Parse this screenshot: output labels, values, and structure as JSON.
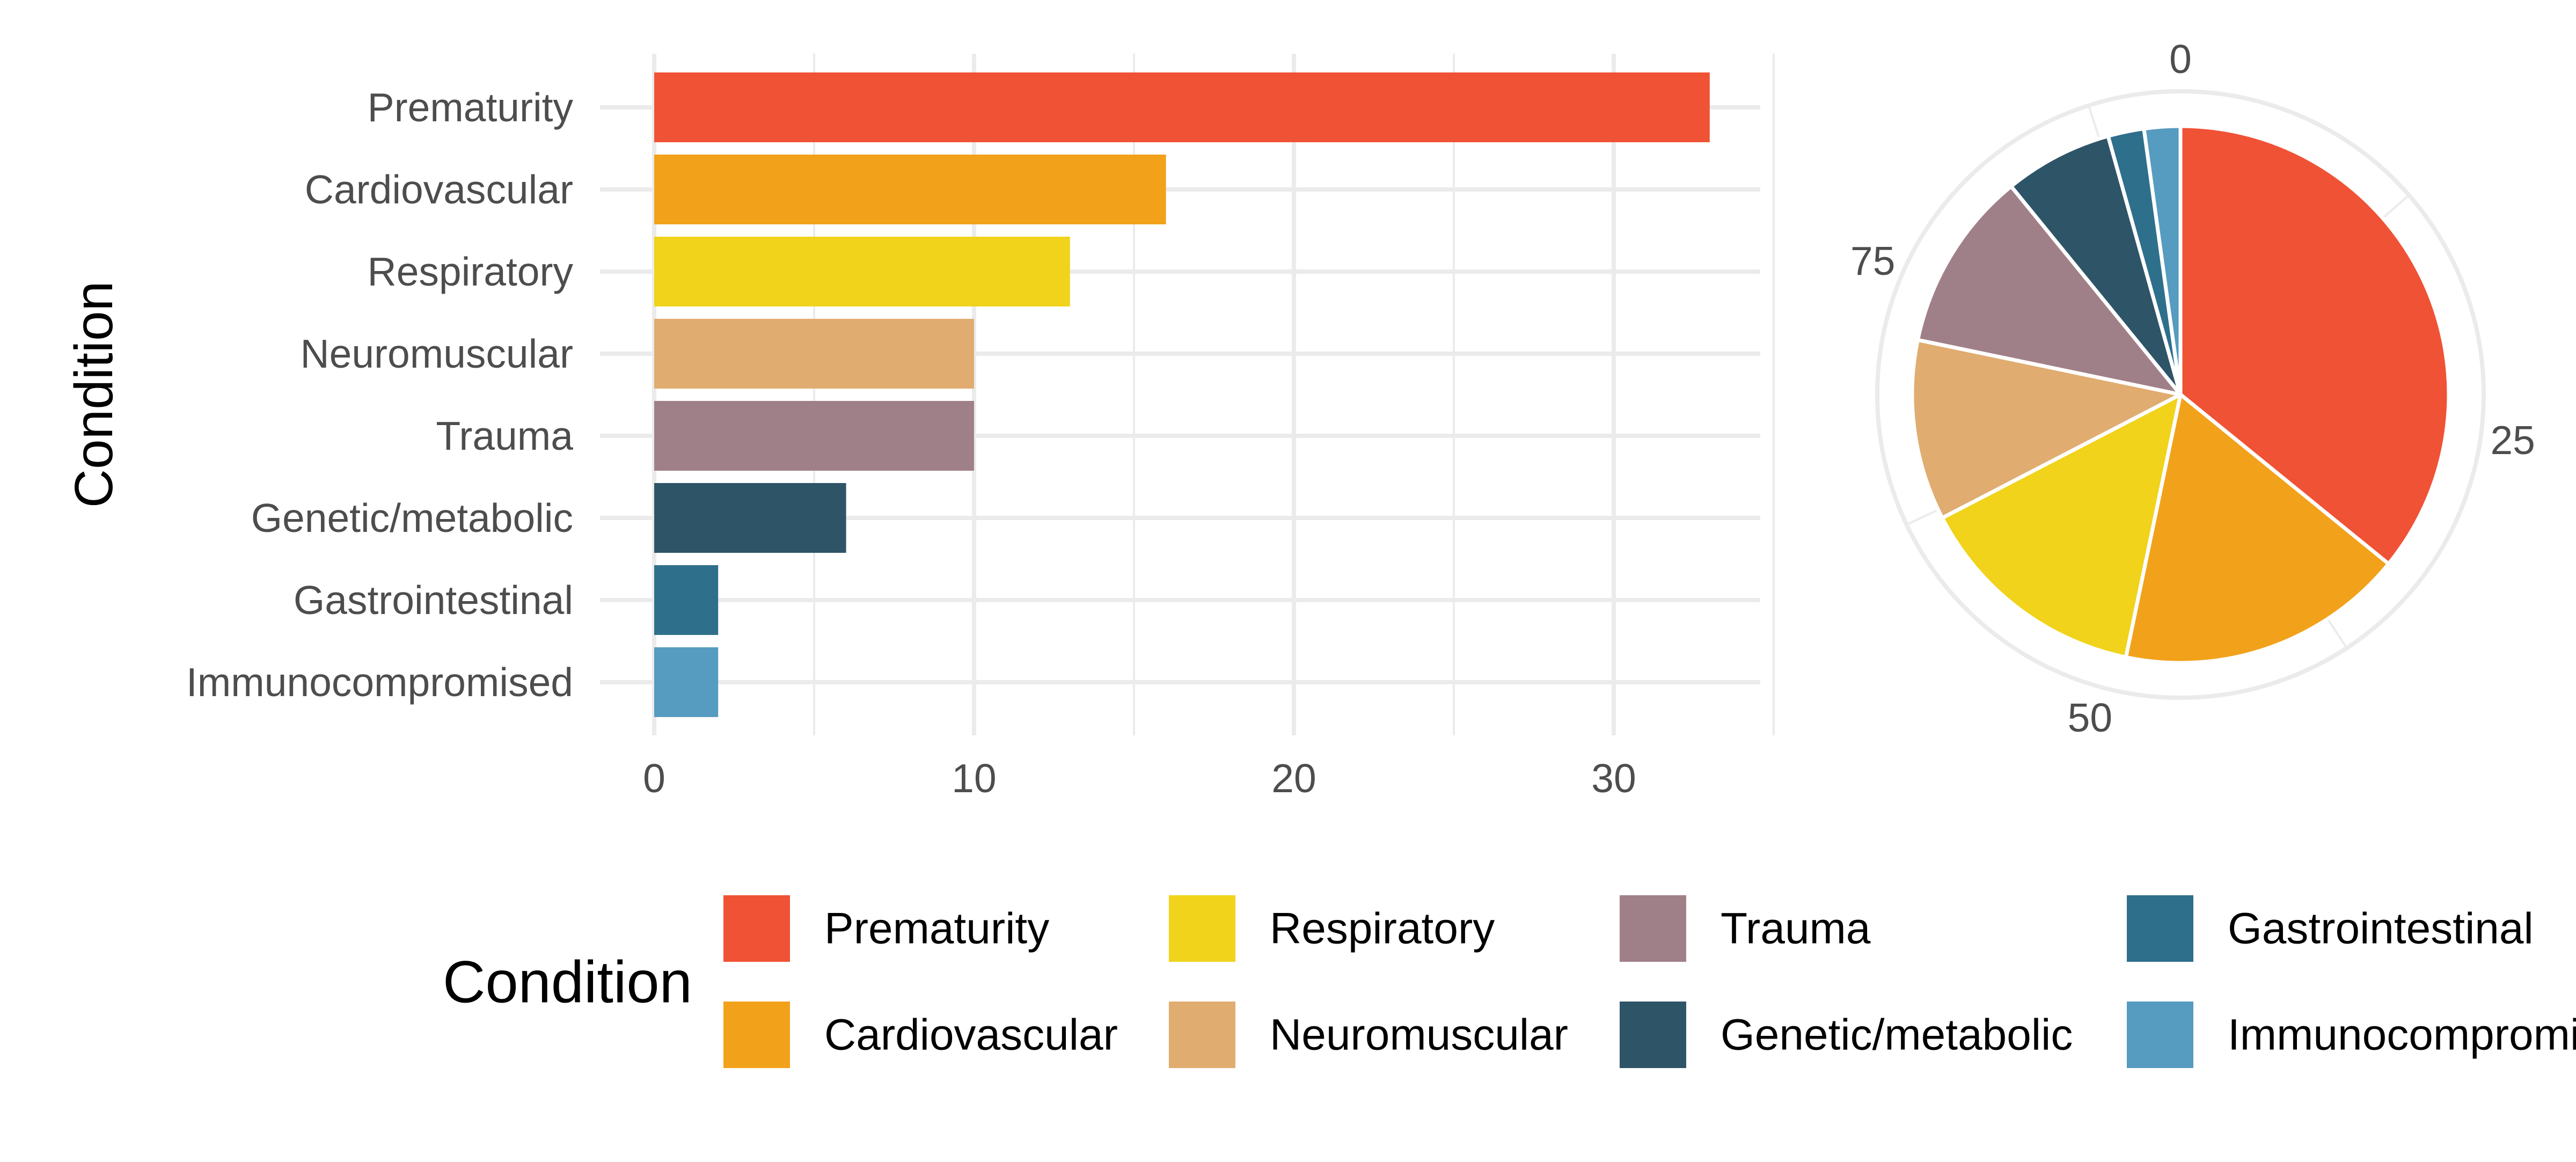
{
  "chart_data": [
    {
      "type": "bar",
      "orientation": "horizontal",
      "categories": [
        "Prematurity",
        "Cardiovascular",
        "Respiratory",
        "Neuromuscular",
        "Trauma",
        "Genetic/metabolic",
        "Gastrointestinal",
        "Immunocompromised"
      ],
      "values": [
        33,
        16,
        13,
        10,
        10,
        6,
        2,
        2
      ],
      "colors": [
        "#F05235",
        "#F2A11A",
        "#F0D31A",
        "#E0AC70",
        "#A08088",
        "#2E5468",
        "#2E6F8C",
        "#569BC0"
      ],
      "xlabel": "",
      "ylabel": "Condition",
      "xlim": [
        0,
        35
      ],
      "xticks": [
        "0",
        "10",
        "20",
        "30"
      ],
      "grid": true
    },
    {
      "type": "pie",
      "categories": [
        "Prematurity",
        "Cardiovascular",
        "Respiratory",
        "Neuromuscular",
        "Trauma",
        "Genetic/metabolic",
        "Gastrointestinal",
        "Immunocompromised"
      ],
      "values": [
        33,
        16,
        13,
        10,
        10,
        6,
        2,
        2
      ],
      "colors": [
        "#F05235",
        "#F2A11A",
        "#F0D31A",
        "#E0AC70",
        "#A08088",
        "#2E5468",
        "#2E6F8C",
        "#569BC0"
      ],
      "angular_scale": [
        0,
        92
      ],
      "angular_ticks": [
        "0",
        "25",
        "50",
        "75"
      ],
      "grid": true
    }
  ],
  "legend": {
    "title": "Condition",
    "placement": "bottom",
    "items": [
      {
        "label": "Prematurity",
        "color": "#F05235"
      },
      {
        "label": "Cardiovascular",
        "color": "#F2A11A"
      },
      {
        "label": "Respiratory",
        "color": "#F0D31A"
      },
      {
        "label": "Neuromuscular",
        "color": "#E0AC70"
      },
      {
        "label": "Trauma",
        "color": "#A08088"
      },
      {
        "label": "Genetic/metabolic",
        "color": "#2E5468"
      },
      {
        "label": "Gastrointestinal",
        "color": "#2E6F8C"
      },
      {
        "label": "Immunocompromised",
        "color": "#569BC0"
      }
    ]
  }
}
